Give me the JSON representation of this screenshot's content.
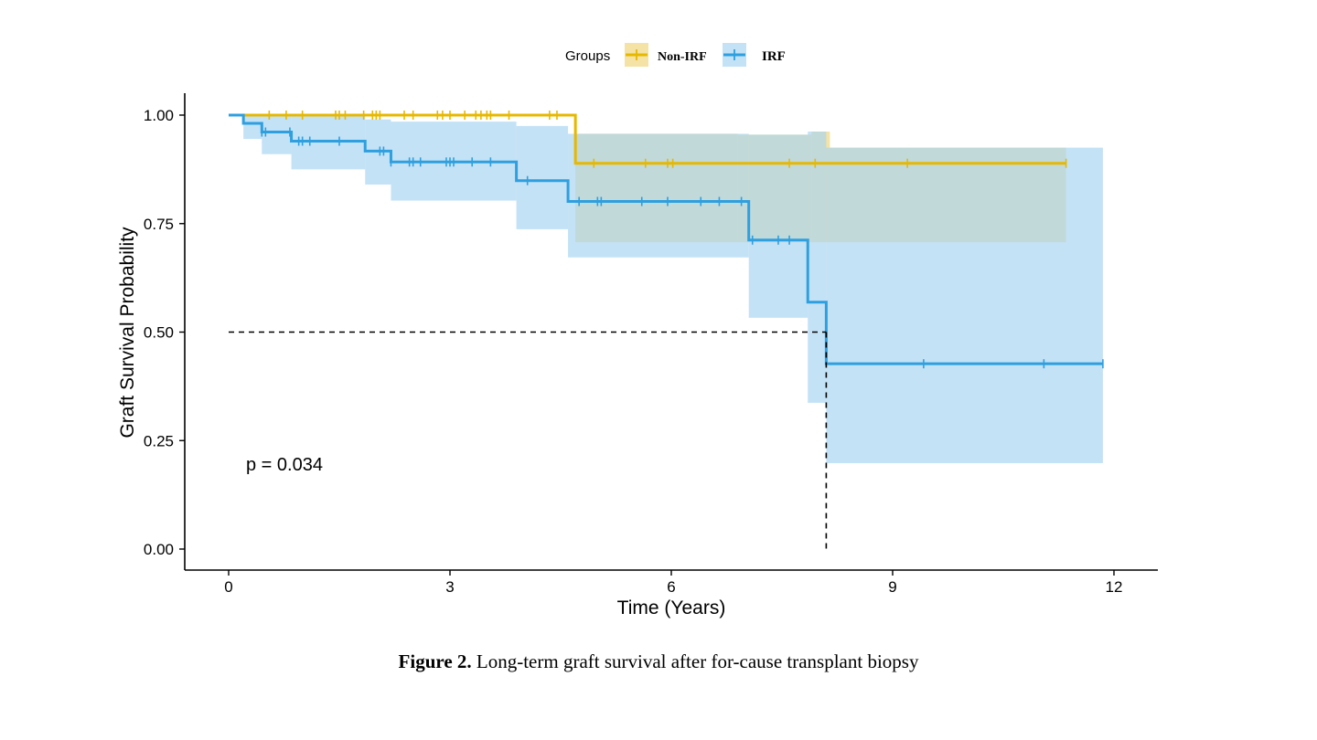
{
  "chart_data": {
    "type": "line",
    "subtype": "kaplan-meier step survival curves with 95% confidence bands",
    "xlabel": "Time (Years)",
    "ylabel": "Graft Survival Probability",
    "xlim": [
      -0.6,
      12.6
    ],
    "ylim": [
      -0.05,
      1.05
    ],
    "x_ticks": [
      0,
      3,
      6,
      9,
      12
    ],
    "x_tick_labels": [
      "0",
      "3",
      "6",
      "9",
      "12"
    ],
    "y_ticks": [
      0,
      0.25,
      0.5,
      0.75,
      1.0
    ],
    "y_tick_labels": [
      "0.00",
      "0.25",
      "0.50",
      "0.75",
      "1.00"
    ],
    "grid": false,
    "legend": {
      "title": "Groups",
      "position": "top"
    },
    "annotation": "p = 0.034",
    "median_line": {
      "y": 0.5,
      "x": 8.1
    },
    "series": [
      {
        "name": "Non-IRF",
        "color": "#E7B800",
        "band_color": "#EFD67A",
        "steps": [
          [
            0,
            1.0
          ],
          [
            4.7,
            0.889
          ],
          [
            11.35,
            0.889
          ]
        ],
        "ci_steps": [
          [
            0,
            1.0,
            1.0
          ],
          [
            4.7,
            0.957,
            0.707
          ],
          [
            6.9,
            0.955,
            0.707
          ],
          [
            7.9,
            0.962,
            0.707
          ],
          [
            8.15,
            0.925,
            0.707
          ],
          [
            11.35,
            0.925,
            0.707
          ]
        ],
        "censors": [
          0.55,
          0.78,
          1.0,
          1.45,
          1.5,
          1.58,
          1.83,
          1.95,
          2.0,
          2.05,
          2.38,
          2.5,
          2.83,
          2.9,
          3.0,
          3.2,
          3.35,
          3.42,
          3.5,
          3.55,
          3.8,
          4.35,
          4.45,
          4.95,
          5.65,
          5.95,
          6.02,
          7.6,
          7.95,
          9.2,
          11.35
        ]
      },
      {
        "name": "IRF",
        "color": "#2E9FDF",
        "band_color": "#A8D4F1",
        "steps": [
          [
            0,
            1.0
          ],
          [
            0.2,
            0.981
          ],
          [
            0.45,
            0.961
          ],
          [
            0.85,
            0.94
          ],
          [
            1.85,
            0.917
          ],
          [
            2.2,
            0.892
          ],
          [
            3.9,
            0.849
          ],
          [
            4.6,
            0.801
          ],
          [
            7.05,
            0.712
          ],
          [
            7.85,
            0.569
          ],
          [
            8.1,
            0.427
          ],
          [
            11.85,
            0.427
          ]
        ],
        "ci_steps": [
          [
            0,
            1.0,
            1.0
          ],
          [
            0.2,
            1.0,
            0.945
          ],
          [
            0.45,
            1.0,
            0.91
          ],
          [
            0.85,
            1.0,
            0.875
          ],
          [
            1.85,
            0.99,
            0.84
          ],
          [
            2.2,
            0.985,
            0.803
          ],
          [
            3.9,
            0.975,
            0.737
          ],
          [
            4.6,
            0.957,
            0.672
          ],
          [
            7.05,
            0.955,
            0.533
          ],
          [
            7.85,
            0.962,
            0.337
          ],
          [
            8.1,
            0.925,
            0.198
          ],
          [
            11.85,
            0.925,
            0.198
          ]
        ],
        "censors": [
          0.45,
          0.5,
          0.83,
          0.95,
          1.0,
          1.1,
          1.5,
          2.05,
          2.1,
          2.2,
          2.45,
          2.5,
          2.6,
          2.95,
          3.0,
          3.05,
          3.3,
          3.55,
          4.05,
          4.75,
          5.0,
          5.05,
          5.6,
          5.95,
          6.4,
          6.65,
          6.95,
          7.1,
          7.45,
          7.6,
          9.42,
          11.05,
          11.85
        ]
      }
    ]
  },
  "caption": {
    "label": "Figure 2.",
    "text": " Long-term graft survival after for-cause transplant biopsy"
  }
}
